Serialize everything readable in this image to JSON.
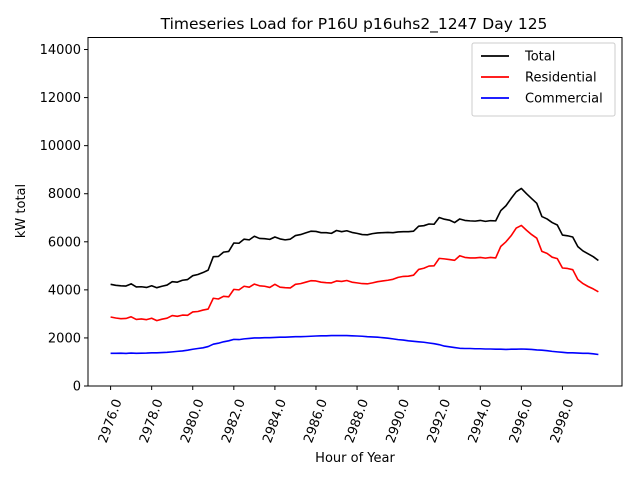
{
  "chart_data": {
    "type": "line",
    "title": "Timeseries Load for P16U p16uhs2_1247  Day 125",
    "xlabel": "Hour of Year",
    "ylabel": "kW total",
    "xlim": [
      2974.9,
      3000.9
    ],
    "ylim": [
      0,
      14500
    ],
    "xticks": [
      2976,
      2978,
      2980,
      2982,
      2984,
      2986,
      2988,
      2990,
      2992,
      2994,
      2996,
      2998
    ],
    "xtick_labels": [
      "2976.0",
      "2978.0",
      "2980.0",
      "2982.0",
      "2984.0",
      "2986.0",
      "2988.0",
      "2990.0",
      "2992.0",
      "2994.0",
      "2996.0",
      "2998.0"
    ],
    "yticks": [
      0,
      2000,
      4000,
      6000,
      8000,
      10000,
      12000,
      14000
    ],
    "ytick_labels": [
      "0",
      "2000",
      "4000",
      "6000",
      "8000",
      "10000",
      "12000",
      "14000"
    ],
    "legend_position": "top-right",
    "x": [
      2976.0,
      2976.25,
      2976.5,
      2976.75,
      2977.0,
      2977.25,
      2977.5,
      2977.75,
      2978.0,
      2978.25,
      2978.5,
      2978.75,
      2979.0,
      2979.25,
      2979.5,
      2979.75,
      2980.0,
      2980.25,
      2980.5,
      2980.75,
      2981.0,
      2981.25,
      2981.5,
      2981.75,
      2982.0,
      2982.25,
      2982.5,
      2982.75,
      2983.0,
      2983.25,
      2983.5,
      2983.75,
      2984.0,
      2984.25,
      2984.5,
      2984.75,
      2985.0,
      2985.25,
      2985.5,
      2985.75,
      2986.0,
      2986.25,
      2986.5,
      2986.75,
      2987.0,
      2987.25,
      2987.5,
      2987.75,
      2988.0,
      2988.25,
      2988.5,
      2988.75,
      2989.0,
      2989.25,
      2989.5,
      2989.75,
      2990.0,
      2990.25,
      2990.5,
      2990.75,
      2991.0,
      2991.25,
      2991.5,
      2991.75,
      2992.0,
      2992.25,
      2992.5,
      2992.75,
      2993.0,
      2993.25,
      2993.5,
      2993.75,
      2994.0,
      2994.25,
      2994.5,
      2994.75,
      2995.0,
      2995.25,
      2995.5,
      2995.75,
      2996.0,
      2996.25,
      2996.5,
      2996.75,
      2997.0,
      2997.25,
      2997.5,
      2997.75,
      2998.0,
      2998.25,
      2998.5,
      2998.75,
      2999.0,
      2999.25,
      2999.5,
      2999.75
    ],
    "series": [
      {
        "name": "Total",
        "color": "#000000",
        "values": [
          4230,
          4190,
          4170,
          4160,
          4250,
          4120,
          4130,
          4100,
          4170,
          4090,
          4150,
          4200,
          4340,
          4320,
          4400,
          4430,
          4590,
          4640,
          4720,
          4820,
          5380,
          5390,
          5570,
          5600,
          5950,
          5940,
          6110,
          6080,
          6230,
          6140,
          6130,
          6100,
          6200,
          6120,
          6080,
          6110,
          6260,
          6300,
          6370,
          6440,
          6430,
          6380,
          6380,
          6350,
          6470,
          6420,
          6460,
          6390,
          6350,
          6300,
          6290,
          6340,
          6370,
          6380,
          6390,
          6380,
          6410,
          6420,
          6420,
          6440,
          6650,
          6670,
          6740,
          6730,
          7010,
          6940,
          6900,
          6800,
          6950,
          6890,
          6870,
          6860,
          6890,
          6850,
          6880,
          6870,
          7300,
          7500,
          7800,
          8080,
          8220,
          8000,
          7800,
          7600,
          7050,
          6950,
          6800,
          6700,
          6280,
          6250,
          6200,
          5800,
          5620,
          5500,
          5380,
          5220
        ]
      },
      {
        "name": "Residential",
        "color": "#ff0000",
        "values": [
          2870,
          2830,
          2800,
          2810,
          2880,
          2770,
          2790,
          2760,
          2820,
          2720,
          2780,
          2820,
          2930,
          2900,
          2950,
          2940,
          3080,
          3100,
          3160,
          3200,
          3650,
          3620,
          3730,
          3710,
          4020,
          4000,
          4150,
          4110,
          4240,
          4170,
          4150,
          4100,
          4230,
          4110,
          4090,
          4080,
          4230,
          4260,
          4320,
          4380,
          4370,
          4320,
          4300,
          4290,
          4370,
          4350,
          4390,
          4320,
          4290,
          4260,
          4250,
          4290,
          4340,
          4370,
          4400,
          4440,
          4520,
          4560,
          4570,
          4610,
          4850,
          4900,
          4990,
          5000,
          5310,
          5290,
          5260,
          5230,
          5420,
          5350,
          5330,
          5330,
          5350,
          5320,
          5350,
          5330,
          5810,
          6000,
          6250,
          6570,
          6680,
          6480,
          6300,
          6150,
          5600,
          5520,
          5360,
          5300,
          4910,
          4890,
          4840,
          4430,
          4260,
          4140,
          4040,
          3920
        ]
      },
      {
        "name": "Commercial",
        "color": "#0000ff",
        "values": [
          1360,
          1360,
          1365,
          1355,
          1370,
          1360,
          1365,
          1370,
          1380,
          1380,
          1390,
          1400,
          1420,
          1440,
          1460,
          1490,
          1530,
          1560,
          1590,
          1640,
          1740,
          1780,
          1840,
          1880,
          1940,
          1930,
          1960,
          1980,
          2000,
          2000,
          2010,
          2010,
          2020,
          2030,
          2030,
          2040,
          2050,
          2050,
          2060,
          2070,
          2080,
          2090,
          2090,
          2100,
          2100,
          2100,
          2100,
          2090,
          2080,
          2070,
          2050,
          2040,
          2030,
          2010,
          1990,
          1960,
          1930,
          1910,
          1880,
          1860,
          1840,
          1820,
          1790,
          1760,
          1720,
          1660,
          1630,
          1600,
          1570,
          1560,
          1560,
          1550,
          1550,
          1540,
          1540,
          1530,
          1530,
          1520,
          1530,
          1530,
          1540,
          1530,
          1520,
          1500,
          1490,
          1470,
          1440,
          1420,
          1400,
          1380,
          1380,
          1370,
          1360,
          1360,
          1340,
          1310
        ]
      }
    ]
  }
}
